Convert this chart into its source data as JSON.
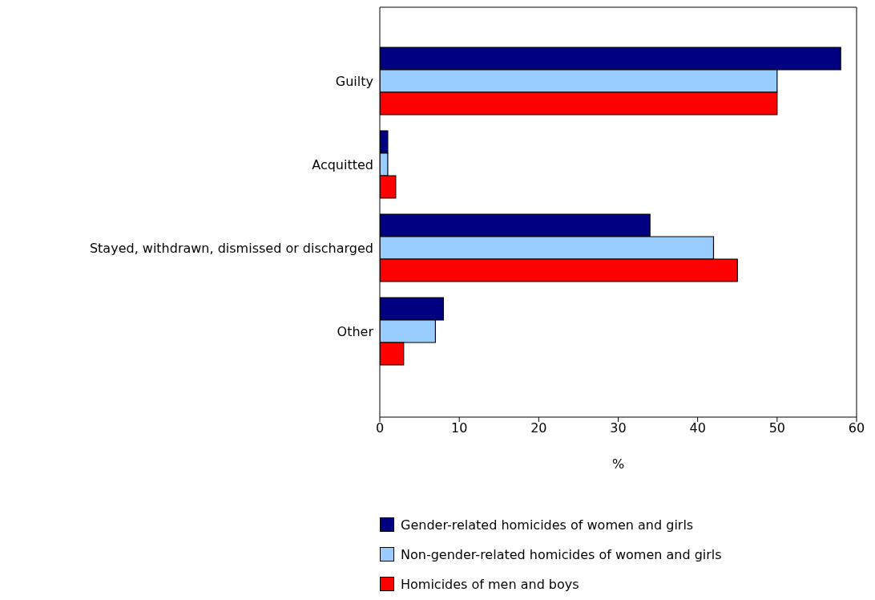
{
  "chart_data": {
    "type": "bar",
    "orientation": "horizontal",
    "categories": [
      "Guilty",
      "Acquitted",
      "Stayed, withdrawn, dismissed or discharged",
      "Other"
    ],
    "series": [
      {
        "name": "Gender-related homicides of women and girls",
        "color": "#000080",
        "values": [
          58,
          1,
          34,
          8
        ]
      },
      {
        "name": "Non-gender-related homicides of women and girls",
        "color": "#99ccff",
        "values": [
          50,
          1,
          42,
          7
        ]
      },
      {
        "name": "Homicides of men and boys",
        "color": "#ff0000",
        "values": [
          50,
          2,
          45,
          3
        ]
      }
    ],
    "xlabel": "%",
    "xlim": [
      0,
      60
    ],
    "xticks": [
      0,
      10,
      20,
      30,
      40,
      50,
      60
    ],
    "grid": false,
    "legend": "bottom"
  }
}
